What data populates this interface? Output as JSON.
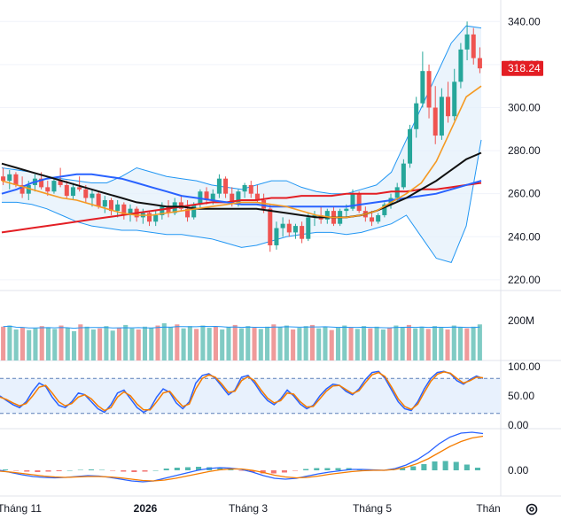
{
  "chart_data": [
    {
      "type": "candlestick",
      "pane": "price",
      "ylim": [
        215,
        350
      ],
      "y_ticks": [
        "340.00",
        "320.00",
        "300.00",
        "280.00",
        "260.00",
        "240.00",
        "220.00"
      ],
      "y_tick_values": [
        340,
        320,
        300,
        280,
        260,
        240,
        220
      ],
      "last_price_label": "318.24",
      "last_price": 318.24,
      "colors": {
        "up": "#26a69a",
        "down": "#ef5350",
        "ma20": "#f59a23",
        "ma50": "#111111",
        "ma100": "#2962ff",
        "ma200": "#e31e24",
        "bollinger": "#2196f3",
        "bollinger_fill": "#e3f0fb",
        "last_price_tag": "#e31e24"
      },
      "candles": [
        {
          "o": 268,
          "h": 272,
          "l": 264,
          "c": 266
        },
        {
          "o": 266,
          "h": 271,
          "l": 262,
          "c": 269
        },
        {
          "o": 269,
          "h": 270,
          "l": 263,
          "c": 264
        },
        {
          "o": 264,
          "h": 268,
          "l": 258,
          "c": 260
        },
        {
          "o": 260,
          "h": 266,
          "l": 257,
          "c": 264
        },
        {
          "o": 264,
          "h": 269,
          "l": 261,
          "c": 267
        },
        {
          "o": 267,
          "h": 270,
          "l": 262,
          "c": 263
        },
        {
          "o": 263,
          "h": 266,
          "l": 259,
          "c": 261
        },
        {
          "o": 261,
          "h": 267,
          "l": 260,
          "c": 266
        },
        {
          "o": 266,
          "h": 272,
          "l": 263,
          "c": 264
        },
        {
          "o": 264,
          "h": 266,
          "l": 258,
          "c": 259
        },
        {
          "o": 259,
          "h": 265,
          "l": 257,
          "c": 263
        },
        {
          "o": 263,
          "h": 268,
          "l": 261,
          "c": 262
        },
        {
          "o": 262,
          "h": 264,
          "l": 256,
          "c": 258
        },
        {
          "o": 258,
          "h": 262,
          "l": 254,
          "c": 260
        },
        {
          "o": 260,
          "h": 261,
          "l": 253,
          "c": 254
        },
        {
          "o": 254,
          "h": 259,
          "l": 251,
          "c": 257
        },
        {
          "o": 257,
          "h": 258,
          "l": 250,
          "c": 252
        },
        {
          "o": 252,
          "h": 257,
          "l": 249,
          "c": 255
        },
        {
          "o": 255,
          "h": 256,
          "l": 248,
          "c": 250
        },
        {
          "o": 250,
          "h": 255,
          "l": 247,
          "c": 253
        },
        {
          "o": 253,
          "h": 254,
          "l": 247,
          "c": 249
        },
        {
          "o": 249,
          "h": 253,
          "l": 246,
          "c": 251
        },
        {
          "o": 251,
          "h": 252,
          "l": 245,
          "c": 247
        },
        {
          "o": 247,
          "h": 252,
          "l": 245,
          "c": 250
        },
        {
          "o": 250,
          "h": 256,
          "l": 248,
          "c": 254
        },
        {
          "o": 254,
          "h": 257,
          "l": 249,
          "c": 251
        },
        {
          "o": 251,
          "h": 258,
          "l": 250,
          "c": 256
        },
        {
          "o": 256,
          "h": 259,
          "l": 252,
          "c": 253
        },
        {
          "o": 253,
          "h": 257,
          "l": 247,
          "c": 249
        },
        {
          "o": 249,
          "h": 256,
          "l": 248,
          "c": 255
        },
        {
          "o": 255,
          "h": 262,
          "l": 253,
          "c": 261
        },
        {
          "o": 261,
          "h": 263,
          "l": 255,
          "c": 257
        },
        {
          "o": 257,
          "h": 262,
          "l": 255,
          "c": 260
        },
        {
          "o": 260,
          "h": 269,
          "l": 258,
          "c": 267
        },
        {
          "o": 267,
          "h": 268,
          "l": 258,
          "c": 260
        },
        {
          "o": 260,
          "h": 263,
          "l": 254,
          "c": 256
        },
        {
          "o": 256,
          "h": 262,
          "l": 254,
          "c": 261
        },
        {
          "o": 261,
          "h": 265,
          "l": 258,
          "c": 264
        },
        {
          "o": 264,
          "h": 266,
          "l": 258,
          "c": 260
        },
        {
          "o": 260,
          "h": 264,
          "l": 256,
          "c": 257
        },
        {
          "o": 257,
          "h": 260,
          "l": 251,
          "c": 253
        },
        {
          "o": 253,
          "h": 255,
          "l": 233,
          "c": 236
        },
        {
          "o": 236,
          "h": 247,
          "l": 234,
          "c": 244
        },
        {
          "o": 244,
          "h": 249,
          "l": 240,
          "c": 246
        },
        {
          "o": 246,
          "h": 248,
          "l": 240,
          "c": 242
        },
        {
          "o": 242,
          "h": 246,
          "l": 239,
          "c": 245
        },
        {
          "o": 245,
          "h": 247,
          "l": 237,
          "c": 239
        },
        {
          "o": 239,
          "h": 251,
          "l": 238,
          "c": 249
        },
        {
          "o": 249,
          "h": 252,
          "l": 245,
          "c": 250
        },
        {
          "o": 250,
          "h": 254,
          "l": 246,
          "c": 248
        },
        {
          "o": 248,
          "h": 253,
          "l": 246,
          "c": 252
        },
        {
          "o": 252,
          "h": 254,
          "l": 245,
          "c": 246
        },
        {
          "o": 246,
          "h": 253,
          "l": 245,
          "c": 252
        },
        {
          "o": 252,
          "h": 255,
          "l": 249,
          "c": 253
        },
        {
          "o": 253,
          "h": 262,
          "l": 252,
          "c": 260
        },
        {
          "o": 260,
          "h": 261,
          "l": 251,
          "c": 252
        },
        {
          "o": 252,
          "h": 254,
          "l": 247,
          "c": 249
        },
        {
          "o": 249,
          "h": 252,
          "l": 245,
          "c": 247
        },
        {
          "o": 247,
          "h": 251,
          "l": 246,
          "c": 250
        },
        {
          "o": 250,
          "h": 256,
          "l": 249,
          "c": 255
        },
        {
          "o": 255,
          "h": 260,
          "l": 253,
          "c": 258
        },
        {
          "o": 258,
          "h": 265,
          "l": 256,
          "c": 263
        },
        {
          "o": 263,
          "h": 276,
          "l": 262,
          "c": 274
        },
        {
          "o": 274,
          "h": 292,
          "l": 272,
          "c": 290
        },
        {
          "o": 290,
          "h": 305,
          "l": 286,
          "c": 302
        },
        {
          "o": 302,
          "h": 326,
          "l": 300,
          "c": 317
        },
        {
          "o": 317,
          "h": 320,
          "l": 295,
          "c": 300
        },
        {
          "o": 300,
          "h": 310,
          "l": 283,
          "c": 287
        },
        {
          "o": 287,
          "h": 309,
          "l": 285,
          "c": 305
        },
        {
          "o": 305,
          "h": 312,
          "l": 293,
          "c": 296
        },
        {
          "o": 296,
          "h": 318,
          "l": 294,
          "c": 312
        },
        {
          "o": 312,
          "h": 330,
          "l": 309,
          "c": 327
        },
        {
          "o": 327,
          "h": 340,
          "l": 322,
          "c": 334
        },
        {
          "o": 334,
          "h": 337,
          "l": 320,
          "c": 323
        },
        {
          "o": 323,
          "h": 328,
          "l": 316,
          "c": 318.24
        }
      ],
      "ma_series": {
        "ma20": [
          266,
          264,
          262,
          260,
          258,
          257,
          255,
          253,
          251,
          250,
          250,
          251,
          252,
          253,
          254,
          255,
          256,
          256,
          255,
          254,
          252,
          250,
          249,
          249,
          250,
          252,
          256,
          260,
          265,
          275,
          290,
          305,
          310
        ],
        "ma50": [
          274,
          272,
          270,
          268,
          266,
          264,
          262,
          260,
          258,
          256,
          255,
          254,
          254,
          253,
          253,
          253,
          253,
          253,
          252,
          251,
          250,
          249,
          249,
          249,
          250,
          252,
          255,
          258,
          262,
          266,
          271,
          276,
          279
        ],
        "ma100": [
          260,
          262,
          265,
          267,
          268,
          269,
          269,
          268,
          267,
          265,
          263,
          261,
          259,
          258,
          257,
          256,
          255,
          255,
          254,
          254,
          254,
          254,
          254,
          254,
          255,
          256,
          257,
          258,
          259,
          260,
          262,
          264,
          266
        ],
        "ma200": [
          242,
          243,
          244,
          245,
          246,
          247,
          248,
          249,
          250,
          251,
          252,
          253,
          254,
          255,
          256,
          256,
          257,
          257,
          258,
          258,
          259,
          259,
          259,
          260,
          260,
          260,
          261,
          261,
          262,
          262,
          263,
          264,
          265
        ],
        "bb_upper": [
          272,
          271,
          270,
          268,
          267,
          266,
          265,
          265,
          268,
          272,
          270,
          268,
          267,
          266,
          264,
          263,
          262,
          264,
          266,
          266,
          263,
          261,
          260,
          260,
          262,
          264,
          270,
          285,
          300,
          315,
          330,
          338,
          337
        ],
        "bb_lower": [
          256,
          256,
          255,
          253,
          250,
          247,
          245,
          244,
          243,
          243,
          242,
          241,
          241,
          240,
          239,
          237,
          235,
          236,
          238,
          240,
          241,
          242,
          242,
          241,
          242,
          244,
          246,
          250,
          240,
          230,
          228,
          245,
          285
        ]
      }
    },
    {
      "type": "bar",
      "pane": "volume",
      "y_ticks": [
        "200M"
      ],
      "values": [
        60,
        62,
        55,
        58,
        54,
        57,
        61,
        59,
        56,
        62,
        58,
        52,
        64,
        60,
        55,
        57,
        61,
        53,
        58,
        63,
        57,
        55,
        60,
        58,
        62,
        66,
        59,
        64,
        57,
        61,
        56,
        62,
        58,
        60,
        55,
        59,
        63,
        57,
        61,
        58,
        56,
        60,
        64,
        59,
        62,
        55,
        58,
        61,
        63,
        57,
        60,
        54,
        58,
        62,
        59,
        56,
        61,
        57,
        60,
        55,
        58,
        62,
        59,
        63,
        57,
        60,
        56,
        61,
        58,
        55,
        62,
        59,
        57,
        60,
        64
      ]
    },
    {
      "type": "line",
      "pane": "stochastic",
      "ylim": [
        0,
        100
      ],
      "y_ticks": [
        "100.00",
        "50.00",
        "0.00"
      ],
      "band": [
        20,
        80
      ],
      "series": [
        {
          "values": [
            50,
            42,
            35,
            30,
            40,
            58,
            72,
            66,
            48,
            34,
            30,
            40,
            55,
            52,
            40,
            28,
            22,
            35,
            55,
            60,
            45,
            30,
            22,
            28,
            48,
            62,
            56,
            38,
            28,
            40,
            72,
            85,
            88,
            80,
            66,
            52,
            60,
            82,
            85,
            72,
            55,
            42,
            35,
            45,
            60,
            50,
            36,
            28,
            34,
            50,
            62,
            70,
            68,
            58,
            52,
            62,
            78,
            90,
            92,
            80,
            60,
            40,
            28,
            25,
            40,
            62,
            80,
            90,
            92,
            88,
            76,
            70,
            78,
            84,
            80
          ]
        },
        {
          "values": [
            48,
            44,
            38,
            33,
            37,
            50,
            65,
            68,
            55,
            40,
            33,
            37,
            48,
            52,
            45,
            33,
            25,
            30,
            48,
            57,
            50,
            36,
            26,
            26,
            40,
            55,
            58,
            44,
            32,
            36,
            62,
            80,
            86,
            82,
            70,
            56,
            58,
            76,
            83,
            76,
            60,
            46,
            38,
            42,
            55,
            53,
            40,
            31,
            32,
            45,
            58,
            67,
            68,
            61,
            54,
            59,
            73,
            86,
            90,
            83,
            65,
            45,
            32,
            27,
            36,
            56,
            75,
            87,
            91,
            89,
            80,
            72,
            76,
            82,
            81
          ]
        }
      ]
    },
    {
      "type": "line",
      "pane": "macd",
      "y_ticks": [
        "0.00"
      ],
      "series": [
        {
          "values": [
            0,
            -0.5,
            -1,
            -1.4,
            -1.6,
            -1.7,
            -1.6,
            -1.4,
            -1.2,
            -1.3,
            -1.6,
            -2,
            -2.4,
            -2.6,
            -2.4,
            -1.8,
            -1.2,
            -0.6,
            0,
            0.4,
            0.6,
            0.5,
            0.2,
            -0.4,
            -1.2,
            -1.8,
            -2,
            -1.8,
            -1.3,
            -0.8,
            -0.4,
            -0.1,
            0.2,
            0.2,
            0.1,
            0,
            0.4,
            1.2,
            2.4,
            4,
            6,
            7.5,
            8.4,
            8.6,
            8.3
          ]
        },
        {
          "values": [
            -0.2,
            -0.4,
            -0.7,
            -1,
            -1.3,
            -1.5,
            -1.6,
            -1.5,
            -1.4,
            -1.4,
            -1.5,
            -1.7,
            -2,
            -2.3,
            -2.4,
            -2.2,
            -1.8,
            -1.3,
            -0.8,
            -0.3,
            0.1,
            0.3,
            0.3,
            0,
            -0.5,
            -1.1,
            -1.5,
            -1.7,
            -1.6,
            -1.3,
            -0.9,
            -0.6,
            -0.3,
            -0.1,
            0,
            0,
            0.2,
            0.7,
            1.5,
            2.6,
            4,
            5.4,
            6.5,
            7.3,
            7.7
          ]
        }
      ],
      "histogram": [
        0.2,
        -0.1,
        -0.3,
        -0.4,
        -0.3,
        -0.2,
        0,
        0.1,
        0.2,
        0.1,
        -0.1,
        -0.3,
        -0.4,
        -0.3,
        0,
        0.4,
        0.6,
        0.7,
        0.8,
        0.7,
        0.5,
        0.2,
        -0.1,
        -0.4,
        -0.7,
        -0.7,
        -0.5,
        -0.1,
        0.3,
        0.5,
        0.5,
        0.5,
        0.5,
        0.3,
        0.1,
        0,
        0.2,
        0.5,
        0.9,
        1.4,
        2,
        2.1,
        1.9,
        1.3,
        0.6
      ]
    }
  ],
  "time_axis": {
    "labels": [
      {
        "text": "Tháng 11",
        "bold": false
      },
      {
        "text": "2026",
        "bold": true
      },
      {
        "text": "Tháng 3",
        "bold": false
      },
      {
        "text": "Tháng 5",
        "bold": false
      },
      {
        "text": "Thán",
        "bold": false
      }
    ],
    "settings_icon": "gear-icon"
  }
}
